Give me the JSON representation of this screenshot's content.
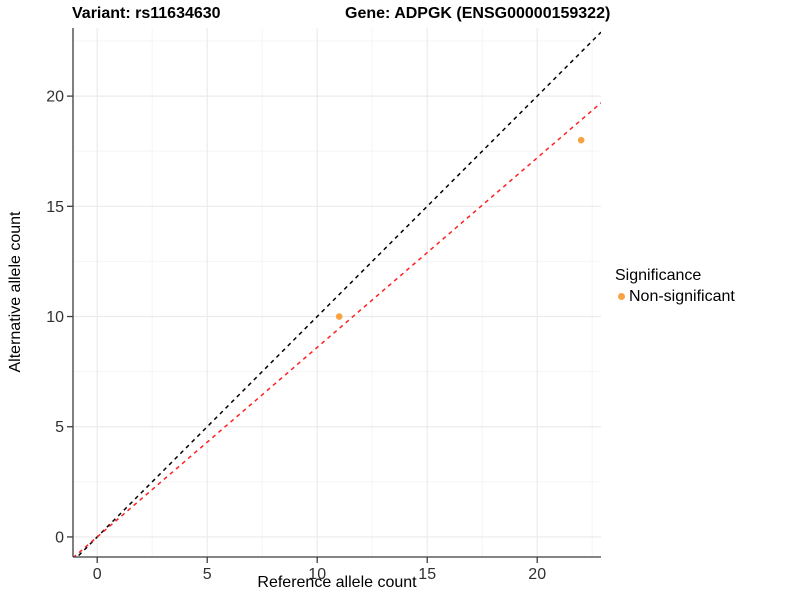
{
  "header": {
    "title_left": "Variant: rs11634630",
    "title_right": "Gene: ADPGK (ENSG00000159322)"
  },
  "legend": {
    "title": "Significance",
    "items": [
      {
        "label": "Non-significant",
        "color": "#F9A242",
        "marker": "circle"
      }
    ]
  },
  "chart_data": {
    "type": "scatter",
    "title": "Variant: rs11634630 | Gene: ADPGK (ENSG00000159322)",
    "xlabel": "Reference allele count",
    "ylabel": "Alternative allele count",
    "xlim": [
      -1.1,
      22.9
    ],
    "ylim": [
      -0.91,
      23.09
    ],
    "x_ticks": [
      0,
      5,
      10,
      15,
      20
    ],
    "y_ticks": [
      0,
      5,
      10,
      15,
      20
    ],
    "grid": {
      "major_x": [
        0,
        5,
        10,
        15,
        20
      ],
      "minor_x": [
        2.5,
        7.5,
        12.5,
        17.5,
        22.5
      ],
      "major_y": [
        0,
        5,
        10,
        15,
        20
      ],
      "minor_y": [
        2.5,
        7.5,
        12.5,
        17.5,
        22.5
      ],
      "major_color": "#EBEBEB",
      "minor_color": "#F5F5F5"
    },
    "series": [
      {
        "name": "Non-significant",
        "color": "#F9A242",
        "marker": "circle",
        "points": [
          [
            11,
            10
          ],
          [
            22,
            18
          ]
        ]
      }
    ],
    "lines": [
      {
        "name": "identity-line",
        "slope": 1,
        "intercept": 0,
        "color": "#000000",
        "style": "dashed"
      },
      {
        "name": "fit-line",
        "slope": 0.86,
        "intercept": 0,
        "color": "#FF1F1F",
        "style": "dashed"
      }
    ],
    "legend_position": "right",
    "grid_on": true
  },
  "colors": {
    "axis": "#3C3C3C",
    "tick_text": "#303030",
    "point": "#F9A242",
    "fit_line": "#FF1F1F",
    "identity_line": "#000000",
    "background": "#FFFFFF"
  }
}
